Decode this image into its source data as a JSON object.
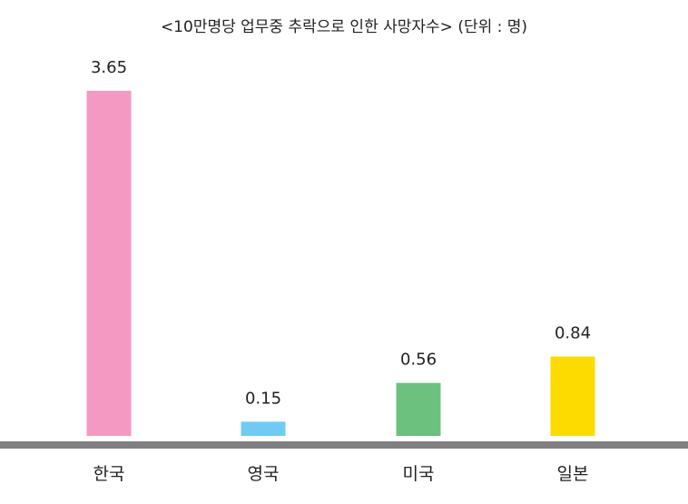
{
  "chart_data": {
    "type": "bar",
    "title": "<10만명당 업무중 추락으로 인한 사망자수> (단위 : 명)",
    "categories": [
      "한국",
      "영국",
      "미국",
      "일본"
    ],
    "values": [
      3.65,
      0.15,
      0.56,
      0.84
    ],
    "value_labels": [
      "3.65",
      "0.15",
      "0.56",
      "0.84"
    ],
    "colors": [
      "#F49AC2",
      "#6FCBF5",
      "#6CC17E",
      "#FDDB00"
    ],
    "baseline_color": "#7F7F82",
    "ylim": [
      0,
      3.65
    ],
    "grid": false,
    "legend": "none",
    "xlabel": "",
    "ylabel": ""
  }
}
